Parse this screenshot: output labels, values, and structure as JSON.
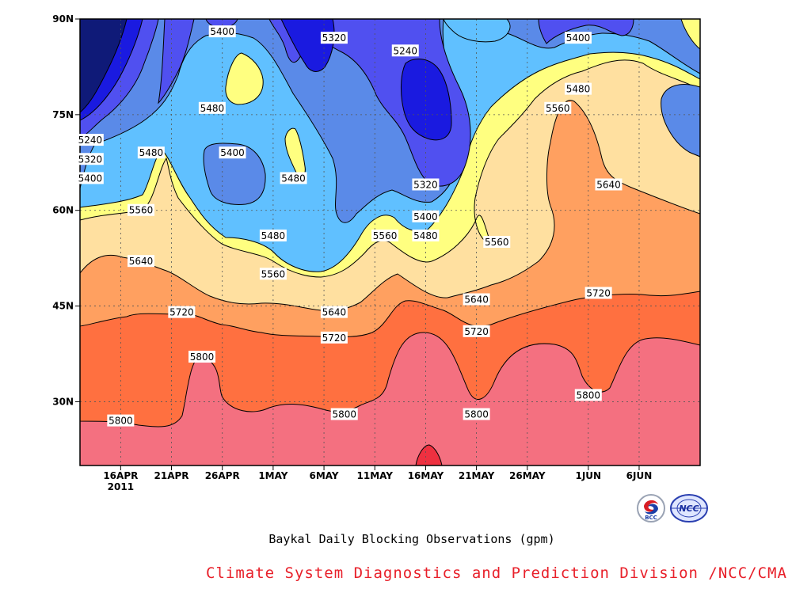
{
  "chart_data": {
    "type": "heatmap",
    "subtype": "filled-contour",
    "title": "Baykal Daily Blocking Observations (gpm)",
    "y_ticks": [
      "30N",
      "45N",
      "60N",
      "75N",
      "90N"
    ],
    "x_ticks": [
      "16APR",
      "21APR",
      "26APR",
      "1MAY",
      "6MAY",
      "11MAY",
      "16MAY",
      "21MAY",
      "26MAY",
      "1JUN",
      "6JUN"
    ],
    "x_year": "2011",
    "ylim": [
      "20N",
      "90N"
    ],
    "grid": true,
    "contour_levels": [
      5240,
      5320,
      5400,
      5480,
      5560,
      5640,
      5720,
      5800
    ],
    "fill_colors": {
      "below_5160": "#0f1a78",
      "5160_5240": "#1a1ae0",
      "5240_5320": "#5050f0",
      "5320_5400": "#5a8ae8",
      "5400_5480": "#60c0ff",
      "5480_5560": "#ffff80",
      "5560_5640": "#ffe0a0",
      "5640_5720": "#ffa060",
      "5720_5800": "#ff7040",
      "5800_5880": "#f47080",
      "above_5880": "#ee3040"
    },
    "contour_labels": [
      {
        "value": "5400",
        "date": "26APR",
        "lat": 88
      },
      {
        "value": "5320",
        "date": "7MAY",
        "lat": 87
      },
      {
        "value": "5240",
        "date": "14MAY",
        "lat": 85
      },
      {
        "value": "5400",
        "date": "31MAY",
        "lat": 87
      },
      {
        "value": "5480",
        "date": "31MAY",
        "lat": 79
      },
      {
        "value": "5560",
        "date": "29MAY",
        "lat": 76
      },
      {
        "value": "5480",
        "date": "25APR",
        "lat": 76
      },
      {
        "value": "5240",
        "date": "13APR",
        "lat": 71
      },
      {
        "value": "5320",
        "date": "13APR",
        "lat": 68
      },
      {
        "value": "5400",
        "date": "13APR",
        "lat": 65
      },
      {
        "value": "5480",
        "date": "19APR",
        "lat": 69
      },
      {
        "value": "5400",
        "date": "27APR",
        "lat": 69
      },
      {
        "value": "5480",
        "date": "3MAY",
        "lat": 65
      },
      {
        "value": "5320",
        "date": "16MAY",
        "lat": 64
      },
      {
        "value": "5640",
        "date": "3JUN",
        "lat": 64
      },
      {
        "value": "5560",
        "date": "18APR",
        "lat": 60
      },
      {
        "value": "5400",
        "date": "16MAY",
        "lat": 59
      },
      {
        "value": "5480",
        "date": "16MAY",
        "lat": 56
      },
      {
        "value": "5560",
        "date": "12MAY",
        "lat": 56
      },
      {
        "value": "5480",
        "date": "1MAY",
        "lat": 56
      },
      {
        "value": "5560",
        "date": "23MAY",
        "lat": 55
      },
      {
        "value": "5640",
        "date": "18APR",
        "lat": 52
      },
      {
        "value": "5560",
        "date": "1MAY",
        "lat": 50
      },
      {
        "value": "5640",
        "date": "21MAY",
        "lat": 46
      },
      {
        "value": "5720",
        "date": "2JUN",
        "lat": 47
      },
      {
        "value": "5640",
        "date": "7MAY",
        "lat": 44
      },
      {
        "value": "5720",
        "date": "22APR",
        "lat": 44
      },
      {
        "value": "5720",
        "date": "7MAY",
        "lat": 40
      },
      {
        "value": "5720",
        "date": "21MAY",
        "lat": 41
      },
      {
        "value": "5800",
        "date": "24APR",
        "lat": 37
      },
      {
        "value": "5800",
        "date": "1JUN",
        "lat": 31
      },
      {
        "value": "5800",
        "date": "8MAY",
        "lat": 28
      },
      {
        "value": "5800",
        "date": "21MAY",
        "lat": 28
      },
      {
        "value": "5800",
        "date": "16APR",
        "lat": 27
      }
    ]
  },
  "caption": "Baykal Daily Blocking Observations (gpm)",
  "credit": "Climate System Diagnostics and Prediction Division /NCC/CMA",
  "logos": {
    "bcc_text": "BCC",
    "ncc_text": "NCC"
  }
}
